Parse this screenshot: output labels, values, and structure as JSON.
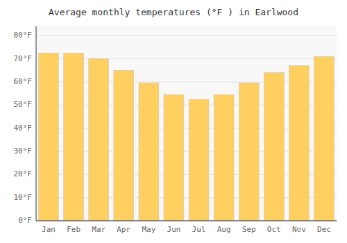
{
  "chart_data": {
    "type": "bar",
    "title": "Average monthly temperatures (°F ) in Earlwood",
    "categories": [
      "Jan",
      "Feb",
      "Mar",
      "Apr",
      "May",
      "Jun",
      "Jul",
      "Aug",
      "Sep",
      "Oct",
      "Nov",
      "Dec"
    ],
    "values": [
      72.5,
      72.5,
      70,
      65,
      59.5,
      54.5,
      52.5,
      54.5,
      59.5,
      64,
      67,
      71
    ],
    "color": "#FFD060",
    "ylim": [
      0,
      84
    ],
    "yticks": [
      {
        "value": 0,
        "label": "0°F"
      },
      {
        "value": 10,
        "label": "10°F"
      },
      {
        "value": 20,
        "label": "20°F"
      },
      {
        "value": 30,
        "label": "30°F"
      },
      {
        "value": 40,
        "label": "40°F"
      },
      {
        "value": 50,
        "label": "50°F"
      },
      {
        "value": 60,
        "label": "60°F"
      },
      {
        "value": 70,
        "label": "70°F"
      },
      {
        "value": 80,
        "label": "80°F"
      }
    ],
    "grid": true
  }
}
